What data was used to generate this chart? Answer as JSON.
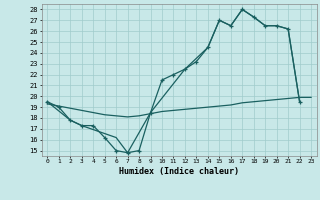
{
  "bg_color": "#c8e8e8",
  "grid_color": "#a0cccc",
  "line_color": "#1a6060",
  "xlabel": "Humidex (Indice chaleur)",
  "xlim": [
    -0.5,
    23.5
  ],
  "ylim": [
    14.5,
    28.5
  ],
  "xticks": [
    0,
    1,
    2,
    3,
    4,
    5,
    6,
    7,
    8,
    9,
    10,
    11,
    12,
    13,
    14,
    15,
    16,
    17,
    18,
    19,
    20,
    21,
    22,
    23
  ],
  "yticks": [
    15,
    16,
    17,
    18,
    19,
    20,
    21,
    22,
    23,
    24,
    25,
    26,
    27,
    28
  ],
  "line1_x": [
    0,
    1,
    2,
    3,
    4,
    5,
    6,
    7,
    8,
    9,
    10,
    11,
    12,
    13,
    14,
    15,
    16,
    17,
    18,
    19,
    20,
    21,
    22
  ],
  "line1_y": [
    19.5,
    19.0,
    17.8,
    17.3,
    17.3,
    16.2,
    15.0,
    14.8,
    15.0,
    18.5,
    21.5,
    22.0,
    22.5,
    23.2,
    24.5,
    27.0,
    26.5,
    28.0,
    27.3,
    26.5,
    26.5,
    26.2,
    19.5
  ],
  "line2_x": [
    0,
    2,
    3,
    6,
    7,
    9,
    12,
    14,
    15,
    16,
    17,
    18,
    19,
    20,
    21,
    22
  ],
  "line2_y": [
    19.5,
    17.8,
    17.3,
    16.2,
    14.8,
    18.5,
    22.5,
    24.5,
    27.0,
    26.5,
    28.0,
    27.3,
    26.5,
    26.5,
    26.2,
    19.5
  ],
  "line3_x": [
    0,
    1,
    2,
    3,
    4,
    5,
    6,
    7,
    8,
    9,
    10,
    11,
    12,
    13,
    14,
    15,
    16,
    17,
    18,
    19,
    20,
    21,
    22,
    23
  ],
  "line3_y": [
    19.3,
    19.1,
    18.9,
    18.7,
    18.5,
    18.3,
    18.2,
    18.1,
    18.2,
    18.4,
    18.6,
    18.7,
    18.8,
    18.9,
    19.0,
    19.1,
    19.2,
    19.4,
    19.5,
    19.6,
    19.7,
    19.8,
    19.9,
    19.9
  ]
}
